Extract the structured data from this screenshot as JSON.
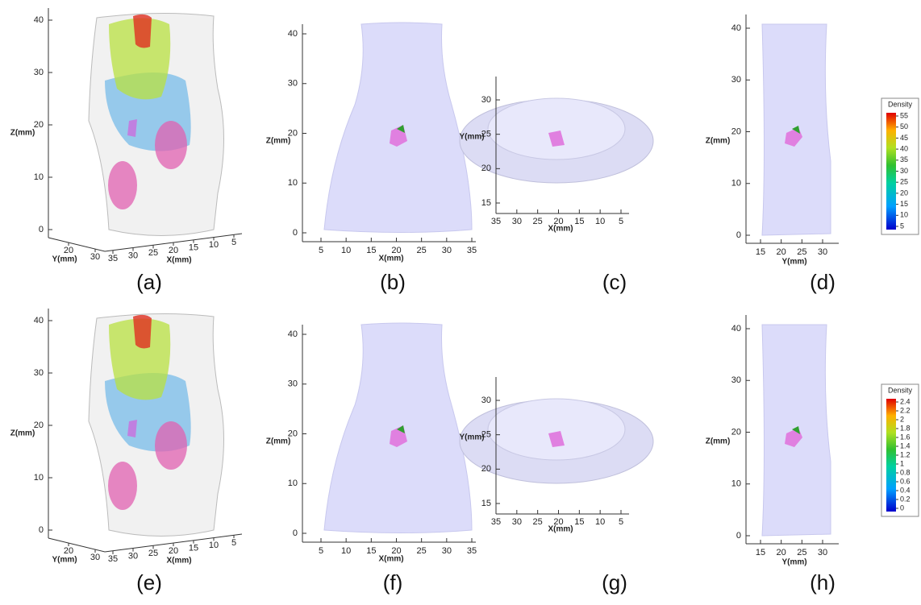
{
  "panels": [
    {
      "label": "(a)",
      "z_label": "Z(mm)",
      "z_ticks": [
        0,
        10,
        20,
        30,
        40
      ],
      "y_label": "Y(mm)",
      "y_ticks": [
        20,
        30
      ],
      "x_label": "X(mm)",
      "x_ticks": [
        35,
        30,
        25,
        20,
        15,
        10,
        5
      ]
    },
    {
      "label": "(b)",
      "z_label": "Z(mm)",
      "z_ticks": [
        0,
        10,
        20,
        30,
        40
      ],
      "x_label": "X(mm)",
      "x_ticks": [
        5,
        10,
        15,
        20,
        25,
        30,
        35
      ]
    },
    {
      "label": "(c)",
      "y_label": "Y(mm)",
      "y_ticks": [
        15,
        20,
        25,
        30
      ],
      "x_label": "X(mm)",
      "x_ticks": [
        35,
        30,
        25,
        20,
        15,
        10,
        5
      ]
    },
    {
      "label": "(d)",
      "z_label": "Z(mm)",
      "z_ticks": [
        0,
        10,
        20,
        30,
        40
      ],
      "y_label": "Y(mm)",
      "y_ticks": [
        15,
        20,
        25,
        30
      ]
    },
    {
      "label": "(e)",
      "z_label": "Z(mm)",
      "z_ticks": [
        0,
        10,
        20,
        30,
        40
      ],
      "y_label": "Y(mm)",
      "y_ticks": [
        20,
        30
      ],
      "x_label": "X(mm)",
      "x_ticks": [
        35,
        30,
        25,
        20,
        15,
        10,
        5
      ]
    },
    {
      "label": "(f)",
      "z_label": "Z(mm)",
      "z_ticks": [
        0,
        10,
        20,
        30,
        40
      ],
      "x_label": "X(mm)",
      "x_ticks": [
        5,
        10,
        15,
        20,
        25,
        30,
        35
      ]
    },
    {
      "label": "(g)",
      "y_label": "Y(mm)",
      "y_ticks": [
        15,
        20,
        25,
        30
      ],
      "x_label": "X(mm)",
      "x_ticks": [
        35,
        30,
        25,
        20,
        15,
        10,
        5
      ]
    },
    {
      "label": "(h)",
      "z_label": "Z(mm)",
      "z_ticks": [
        0,
        10,
        20,
        30,
        40
      ],
      "y_label": "Y(mm)",
      "y_ticks": [
        15,
        20,
        25,
        30
      ]
    }
  ],
  "legends": [
    {
      "title": "Density",
      "ticks": [
        55,
        50,
        45,
        40,
        35,
        30,
        25,
        20,
        15,
        10,
        5
      ]
    },
    {
      "title": "Density",
      "ticks": [
        2.4,
        2.2,
        2,
        1.8,
        1.6,
        1.4,
        1.2,
        1,
        0.8,
        0.6,
        0.4,
        0.2,
        0
      ]
    }
  ]
}
